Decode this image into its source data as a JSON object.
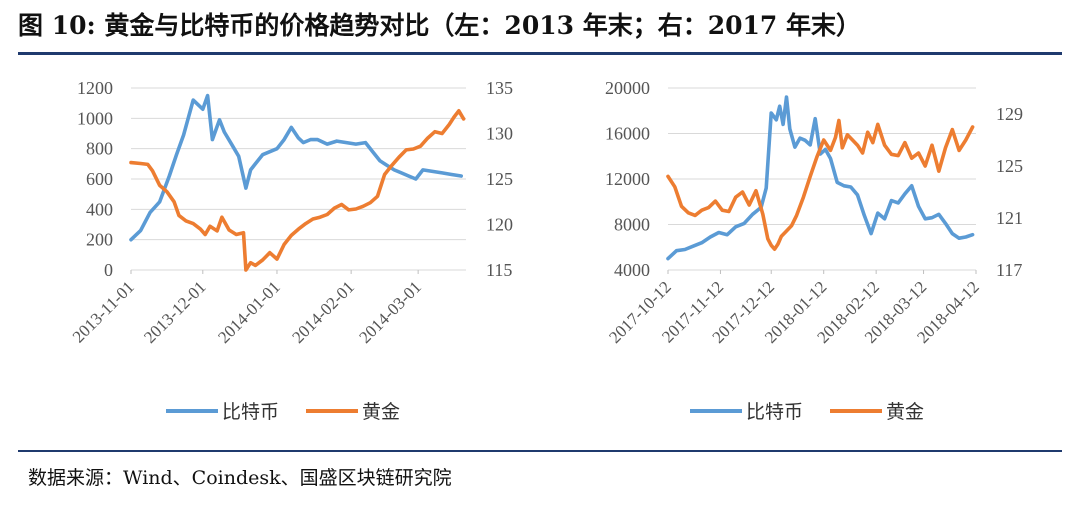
{
  "header": {
    "title": "图 10:  黄金与比特币的价格趋势对比（左：2013 年末；右：2017 年末）"
  },
  "footer": {
    "source": "数据来源：Wind、Coindesk、国盛区块链研究院"
  },
  "colors": {
    "bitcoin": "#5b9bd5",
    "gold": "#ed7d31",
    "grid": "#d9d9d9",
    "rule": "#1f3a6e"
  },
  "chart_data": [
    {
      "type": "line",
      "title": "",
      "xlabel": "",
      "ylabel_left": "",
      "ylabel_right": "",
      "x_ticks": [
        "2013-11-01",
        "2013-12-01",
        "2014-01-01",
        "2014-02-01",
        "2014-03-01"
      ],
      "x_range": [
        0,
        140
      ],
      "x_tick_positions": [
        0,
        30,
        61,
        92,
        120
      ],
      "ylim_left": [
        0,
        1200
      ],
      "y_ticks_left": [
        0,
        200,
        400,
        600,
        800,
        1000,
        1200
      ],
      "ylim_right": [
        115,
        135
      ],
      "y_ticks_right": [
        115,
        120,
        125,
        130,
        135
      ],
      "grid": true,
      "legend": "bottom",
      "series": [
        {
          "name": "比特币",
          "axis": "left",
          "x": [
            0,
            4,
            8,
            12,
            16,
            19,
            22,
            26,
            30,
            32,
            34,
            37,
            39,
            42,
            45,
            48,
            50,
            52,
            55,
            58,
            61,
            64,
            67,
            70,
            72,
            75,
            78,
            82,
            86,
            90,
            94,
            98,
            101,
            104,
            107,
            110,
            113,
            116,
            119,
            122,
            126,
            130,
            134,
            138
          ],
          "y": [
            200,
            260,
            380,
            450,
            620,
            760,
            890,
            1120,
            1060,
            1150,
            860,
            990,
            910,
            830,
            750,
            540,
            660,
            700,
            760,
            780,
            800,
            860,
            940,
            870,
            840,
            860,
            860,
            830,
            850,
            840,
            830,
            840,
            780,
            720,
            690,
            660,
            640,
            620,
            600,
            660,
            650,
            640,
            630,
            620
          ]
        },
        {
          "name": "黄金",
          "axis": "right",
          "x": [
            0,
            4,
            7,
            9,
            12,
            15,
            18,
            20,
            23,
            26,
            29,
            31,
            33,
            36,
            38,
            41,
            44,
            47,
            48,
            50,
            52,
            55,
            58,
            61,
            64,
            67,
            70,
            73,
            76,
            79,
            82,
            85,
            88,
            91,
            94,
            97,
            100,
            103,
            106,
            109,
            112,
            115,
            118,
            121,
            124,
            127,
            130,
            133,
            135,
            137,
            139
          ],
          "y": [
            126.8,
            126.7,
            126.6,
            125.9,
            124.3,
            123.6,
            122.5,
            121.0,
            120.4,
            120.1,
            119.5,
            118.9,
            119.8,
            119.3,
            120.8,
            119.4,
            118.9,
            119.1,
            115.0,
            115.8,
            115.5,
            116.1,
            116.9,
            116.2,
            117.8,
            118.8,
            119.5,
            120.1,
            120.6,
            120.8,
            121.1,
            121.8,
            122.2,
            121.6,
            121.7,
            122.0,
            122.4,
            123.1,
            125.5,
            126.5,
            127.4,
            128.2,
            128.3,
            128.6,
            129.5,
            130.2,
            130.0,
            131.0,
            131.8,
            132.5,
            131.6
          ]
        }
      ]
    },
    {
      "type": "line",
      "title": "",
      "xlabel": "",
      "ylabel_left": "",
      "ylabel_right": "",
      "x_ticks": [
        "2017-10-12",
        "2017-11-12",
        "2017-12-12",
        "2018-01-12",
        "2018-02-12",
        "2018-03-12",
        "2018-04-12"
      ],
      "x_range": [
        0,
        182
      ],
      "x_tick_positions": [
        0,
        31,
        61,
        92,
        123,
        151,
        182
      ],
      "ylim_left": [
        4000,
        20000
      ],
      "y_ticks_left": [
        4000,
        8000,
        12000,
        16000,
        20000
      ],
      "ylim_right": [
        117,
        131
      ],
      "y_ticks_right": [
        117,
        121,
        125,
        129
      ],
      "grid": true,
      "legend": "bottom",
      "series": [
        {
          "name": "比特币",
          "axis": "left",
          "x": [
            0,
            5,
            10,
            15,
            20,
            25,
            30,
            35,
            40,
            45,
            50,
            55,
            58,
            61,
            64,
            66,
            68,
            70,
            72,
            75,
            78,
            81,
            84,
            87,
            90,
            93,
            96,
            100,
            104,
            108,
            112,
            116,
            120,
            124,
            128,
            132,
            136,
            140,
            144,
            148,
            152,
            156,
            160,
            164,
            168,
            172,
            176,
            180
          ],
          "y": [
            5000,
            5700,
            5800,
            6100,
            6400,
            6900,
            7300,
            7100,
            7800,
            8100,
            8900,
            9500,
            11200,
            17800,
            17200,
            18400,
            16800,
            19200,
            16400,
            14800,
            15600,
            15400,
            15000,
            17300,
            14200,
            14600,
            13800,
            11700,
            11400,
            11300,
            10600,
            8800,
            7200,
            9000,
            8500,
            10100,
            9900,
            10700,
            11400,
            9600,
            8500,
            8600,
            8900,
            8100,
            7200,
            6800,
            6900,
            7100
          ]
        },
        {
          "name": "黄金",
          "axis": "right",
          "x": [
            0,
            4,
            8,
            12,
            16,
            20,
            24,
            28,
            32,
            36,
            40,
            44,
            48,
            52,
            56,
            59,
            61,
            63,
            65,
            67,
            70,
            73,
            76,
            80,
            84,
            88,
            92,
            96,
            99,
            101,
            103,
            106,
            109,
            112,
            115,
            118,
            121,
            124,
            128,
            132,
            136,
            140,
            144,
            148,
            152,
            156,
            160,
            164,
            168,
            172,
            176,
            180
          ],
          "y": [
            124.2,
            123.4,
            121.9,
            121.4,
            121.2,
            121.6,
            121.8,
            122.3,
            121.6,
            121.5,
            122.6,
            123.0,
            122.0,
            123.1,
            121.3,
            119.4,
            118.9,
            118.6,
            119.0,
            119.6,
            120.0,
            120.4,
            121.2,
            122.6,
            124.2,
            125.7,
            127.0,
            126.2,
            127.2,
            128.5,
            126.4,
            127.4,
            127.0,
            126.6,
            126.0,
            127.6,
            126.8,
            128.2,
            126.6,
            125.9,
            125.8,
            126.8,
            125.6,
            126.0,
            125.0,
            126.6,
            124.6,
            126.4,
            127.8,
            126.2,
            127.0,
            128.0
          ]
        }
      ]
    }
  ]
}
